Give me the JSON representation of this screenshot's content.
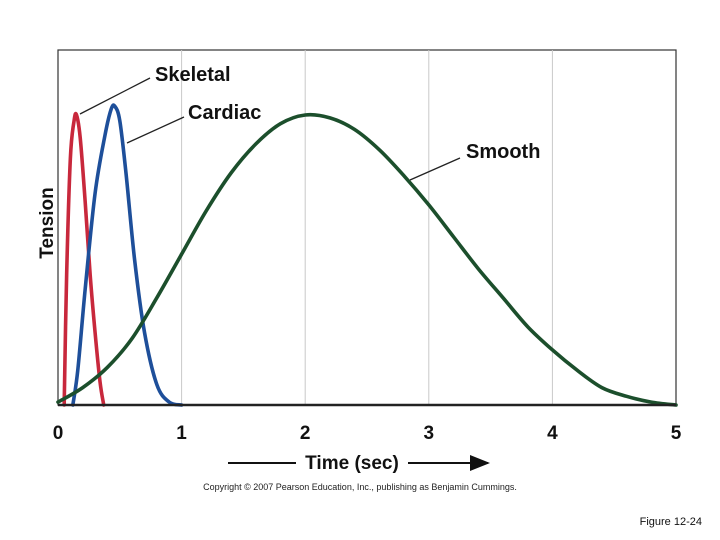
{
  "chart_data": {
    "type": "line",
    "title": "",
    "xlabel": "Time (sec)",
    "ylabel": "Tension",
    "xlim": [
      0,
      5
    ],
    "ylim": [
      0,
      1
    ],
    "x_ticks": [
      "0",
      "1",
      "2",
      "3",
      "4",
      "5"
    ],
    "grid": "vertical",
    "series": [
      {
        "name": "Skeletal",
        "color": "#c8283c",
        "x": [
          0.05,
          0.07,
          0.1,
          0.13,
          0.15,
          0.18,
          0.22,
          0.26,
          0.3,
          0.34,
          0.37
        ],
        "y": [
          0.0,
          0.45,
          0.85,
          0.98,
          1.0,
          0.92,
          0.7,
          0.45,
          0.25,
          0.08,
          0.0
        ]
      },
      {
        "name": "Cardiac",
        "color": "#1e4f9a",
        "x": [
          0.12,
          0.16,
          0.22,
          0.3,
          0.38,
          0.43,
          0.46,
          0.5,
          0.55,
          0.62,
          0.7,
          0.8,
          0.9,
          1.0
        ],
        "y": [
          0.0,
          0.12,
          0.4,
          0.73,
          0.93,
          1.02,
          1.03,
          0.98,
          0.8,
          0.5,
          0.25,
          0.07,
          0.01,
          0.0
        ]
      },
      {
        "name": "Smooth",
        "color": "#1c4f2c",
        "x": [
          0.0,
          0.2,
          0.4,
          0.6,
          0.8,
          1.0,
          1.2,
          1.4,
          1.6,
          1.8,
          2.0,
          2.2,
          2.4,
          2.6,
          2.8,
          3.0,
          3.2,
          3.4,
          3.6,
          3.8,
          4.0,
          4.2,
          4.4,
          4.6,
          4.8,
          5.0
        ],
        "y": [
          0.01,
          0.06,
          0.13,
          0.23,
          0.37,
          0.52,
          0.67,
          0.8,
          0.9,
          0.97,
          1.0,
          0.99,
          0.95,
          0.88,
          0.79,
          0.69,
          0.58,
          0.47,
          0.37,
          0.27,
          0.19,
          0.12,
          0.06,
          0.03,
          0.01,
          0.0
        ]
      }
    ],
    "annotations": [
      {
        "text": "Skeletal",
        "series": "Skeletal"
      },
      {
        "text": "Cardiac",
        "series": "Cardiac"
      },
      {
        "text": "Smooth",
        "series": "Smooth"
      }
    ]
  },
  "footer": {
    "copyright": "Copyright © 2007 Pearson Education, Inc., publishing as Benjamin Cummings.",
    "figure": "Figure 12-24"
  }
}
